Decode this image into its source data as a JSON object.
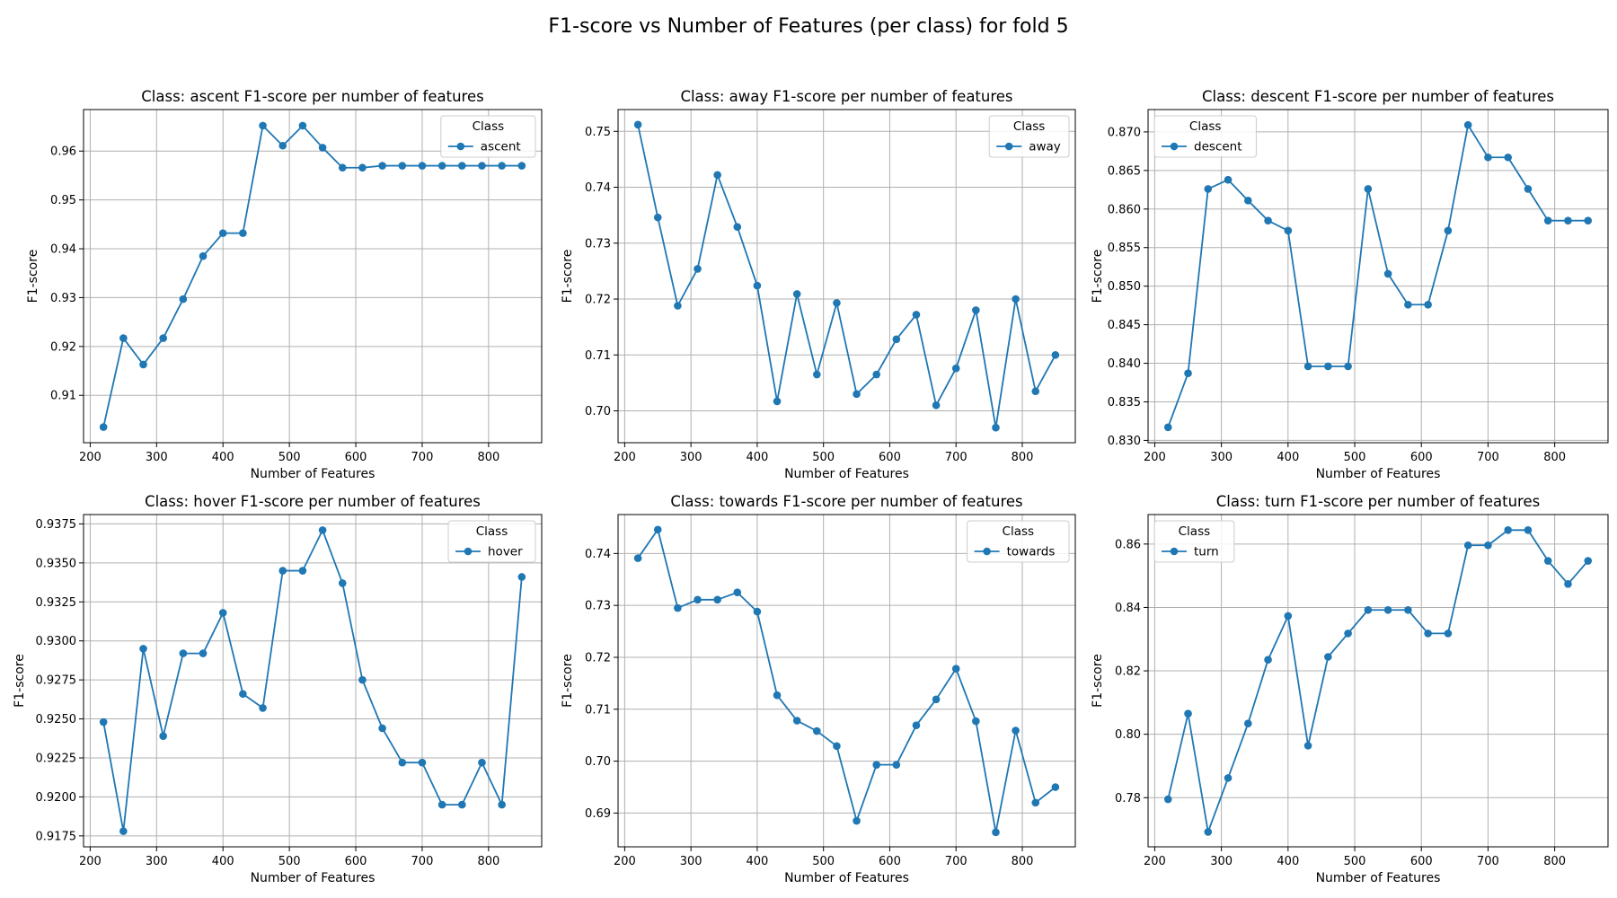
{
  "figure": {
    "suptitle": "F1-score vs Number of Features (per class) for fold 5"
  },
  "colors": {
    "series": "#1f77b4",
    "grid": "#b0b0b0",
    "axis": "#000000",
    "legend_border": "#cccccc"
  },
  "chart_data": [
    {
      "type": "line",
      "title": "Class: ascent F1-score per number of features",
      "xlabel": "Number of Features",
      "ylabel": "F1-score",
      "grid": true,
      "legend": {
        "title": "Class",
        "placement": "upper right"
      },
      "x": [
        220,
        250,
        280,
        310,
        340,
        370,
        400,
        430,
        460,
        490,
        520,
        550,
        580,
        610,
        640,
        670,
        700,
        730,
        760,
        790,
        820,
        850
      ],
      "series": [
        {
          "name": "ascent",
          "values": [
            0.9035,
            0.9217,
            0.9163,
            0.9217,
            0.9297,
            0.9385,
            0.9432,
            0.9432,
            0.9652,
            0.9611,
            0.9652,
            0.9607,
            0.9566,
            0.9566,
            0.957,
            0.957,
            0.957,
            0.957,
            0.957,
            0.957,
            0.957,
            0.957
          ]
        }
      ],
      "xlim": [
        190,
        880
      ],
      "ylim": [
        0.9003,
        0.9685
      ],
      "xticks": [
        200,
        300,
        400,
        500,
        600,
        700,
        800
      ],
      "yticks": [
        0.91,
        0.92,
        0.93,
        0.94,
        0.95,
        0.96
      ],
      "ytick_labels": [
        "0.91",
        "0.92",
        "0.93",
        "0.94",
        "0.95",
        "0.96"
      ]
    },
    {
      "type": "line",
      "title": "Class: away F1-score per number of features",
      "xlabel": "Number of Features",
      "ylabel": "F1-score",
      "grid": true,
      "legend": {
        "title": "Class",
        "placement": "upper right"
      },
      "x": [
        220,
        250,
        280,
        310,
        340,
        370,
        400,
        430,
        460,
        490,
        520,
        550,
        580,
        610,
        640,
        670,
        700,
        730,
        760,
        790,
        820,
        850
      ],
      "series": [
        {
          "name": "away",
          "values": [
            0.7512,
            0.7346,
            0.7188,
            0.7254,
            0.7422,
            0.7329,
            0.7224,
            0.7017,
            0.7209,
            0.7065,
            0.7193,
            0.703,
            0.7065,
            0.7128,
            0.7172,
            0.701,
            0.7076,
            0.718,
            0.697,
            0.72,
            0.7035,
            0.71
          ]
        }
      ],
      "xlim": [
        190,
        880
      ],
      "ylim": [
        0.6943,
        0.7539
      ],
      "xticks": [
        200,
        300,
        400,
        500,
        600,
        700,
        800
      ],
      "yticks": [
        0.7,
        0.71,
        0.72,
        0.73,
        0.74,
        0.75
      ],
      "ytick_labels": [
        "0.70",
        "0.71",
        "0.72",
        "0.73",
        "0.74",
        "0.75"
      ]
    },
    {
      "type": "line",
      "title": "Class: descent F1-score per number of features",
      "xlabel": "Number of Features",
      "ylabel": "F1-score",
      "grid": true,
      "legend": {
        "title": "Class",
        "placement": "upper left"
      },
      "x": [
        220,
        250,
        280,
        310,
        340,
        370,
        400,
        430,
        460,
        490,
        520,
        550,
        580,
        610,
        640,
        670,
        700,
        730,
        760,
        790,
        820,
        850
      ],
      "series": [
        {
          "name": "descent",
          "values": [
            0.8317,
            0.8387,
            0.8626,
            0.8638,
            0.8611,
            0.8585,
            0.8572,
            0.8396,
            0.8396,
            0.8396,
            0.8626,
            0.8516,
            0.8476,
            0.8476,
            0.8572,
            0.8709,
            0.8667,
            0.8667,
            0.8626,
            0.8585,
            0.8585,
            0.8585
          ]
        }
      ],
      "xlim": [
        190,
        880
      ],
      "ylim": [
        0.8297,
        0.8729
      ],
      "xticks": [
        200,
        300,
        400,
        500,
        600,
        700,
        800
      ],
      "yticks": [
        0.83,
        0.835,
        0.84,
        0.845,
        0.85,
        0.855,
        0.86,
        0.865,
        0.87
      ],
      "ytick_labels": [
        "0.830",
        "0.835",
        "0.840",
        "0.845",
        "0.850",
        "0.855",
        "0.860",
        "0.865",
        "0.870"
      ]
    },
    {
      "type": "line",
      "title": "Class: hover F1-score per number of features",
      "xlabel": "Number of Features",
      "ylabel": "F1-score",
      "grid": true,
      "legend": {
        "title": "Class",
        "placement": "upper right"
      },
      "x": [
        220,
        250,
        280,
        310,
        340,
        370,
        400,
        430,
        460,
        490,
        520,
        550,
        580,
        610,
        640,
        670,
        700,
        730,
        760,
        790,
        820,
        850
      ],
      "series": [
        {
          "name": "hover",
          "values": [
            0.9248,
            0.9178,
            0.9295,
            0.9239,
            0.9292,
            0.9292,
            0.9318,
            0.9266,
            0.9257,
            0.9345,
            0.9345,
            0.9371,
            0.9337,
            0.9275,
            0.9244,
            0.9222,
            0.9222,
            0.9195,
            0.9195,
            0.9222,
            0.9195,
            0.9341
          ]
        }
      ],
      "xlim": [
        190,
        880
      ],
      "ylim": [
        0.9168,
        0.9381
      ],
      "xticks": [
        200,
        300,
        400,
        500,
        600,
        700,
        800
      ],
      "yticks": [
        0.9175,
        0.92,
        0.9225,
        0.925,
        0.9275,
        0.93,
        0.9325,
        0.935,
        0.9375
      ],
      "ytick_labels": [
        "0.9175",
        "0.9200",
        "0.9225",
        "0.9250",
        "0.9275",
        "0.9300",
        "0.9325",
        "0.9350",
        "0.9375"
      ]
    },
    {
      "type": "line",
      "title": "Class: towards F1-score per number of features",
      "xlabel": "Number of Features",
      "ylabel": "F1-score",
      "grid": true,
      "legend": {
        "title": "Class",
        "placement": "upper right"
      },
      "x": [
        220,
        250,
        280,
        310,
        340,
        370,
        400,
        430,
        460,
        490,
        520,
        550,
        580,
        610,
        640,
        670,
        700,
        730,
        760,
        790,
        820,
        850
      ],
      "series": [
        {
          "name": "towards",
          "values": [
            0.7391,
            0.7446,
            0.7295,
            0.7311,
            0.7311,
            0.7325,
            0.7288,
            0.7127,
            0.7078,
            0.7058,
            0.7029,
            0.6885,
            0.6993,
            0.6993,
            0.7069,
            0.7119,
            0.7178,
            0.7077,
            0.6863,
            0.7059,
            0.692,
            0.695
          ]
        }
      ],
      "xlim": [
        190,
        880
      ],
      "ylim": [
        0.6835,
        0.7475
      ],
      "xticks": [
        200,
        300,
        400,
        500,
        600,
        700,
        800
      ],
      "yticks": [
        0.69,
        0.7,
        0.71,
        0.72,
        0.73,
        0.74
      ],
      "ytick_labels": [
        "0.69",
        "0.70",
        "0.71",
        "0.72",
        "0.73",
        "0.74"
      ]
    },
    {
      "type": "line",
      "title": "Class: turn F1-score per number of features",
      "xlabel": "Number of Features",
      "ylabel": "F1-score",
      "grid": true,
      "legend": {
        "title": "Class",
        "placement": "upper left"
      },
      "x": [
        220,
        250,
        280,
        310,
        340,
        370,
        400,
        430,
        460,
        490,
        520,
        550,
        580,
        610,
        640,
        670,
        700,
        730,
        760,
        790,
        820,
        850
      ],
      "series": [
        {
          "name": "turn",
          "values": [
            0.7795,
            0.8065,
            0.7692,
            0.7862,
            0.8034,
            0.8235,
            0.8373,
            0.7964,
            0.8244,
            0.8318,
            0.8392,
            0.8392,
            0.8392,
            0.8318,
            0.8318,
            0.8596,
            0.8596,
            0.8644,
            0.8644,
            0.8547,
            0.8474,
            0.8547
          ]
        }
      ],
      "xlim": [
        190,
        880
      ],
      "ylim": [
        0.7645,
        0.8693
      ],
      "xticks": [
        200,
        300,
        400,
        500,
        600,
        700,
        800
      ],
      "yticks": [
        0.78,
        0.8,
        0.82,
        0.84,
        0.86
      ],
      "ytick_labels": [
        "0.78",
        "0.80",
        "0.82",
        "0.84",
        "0.86"
      ]
    }
  ]
}
